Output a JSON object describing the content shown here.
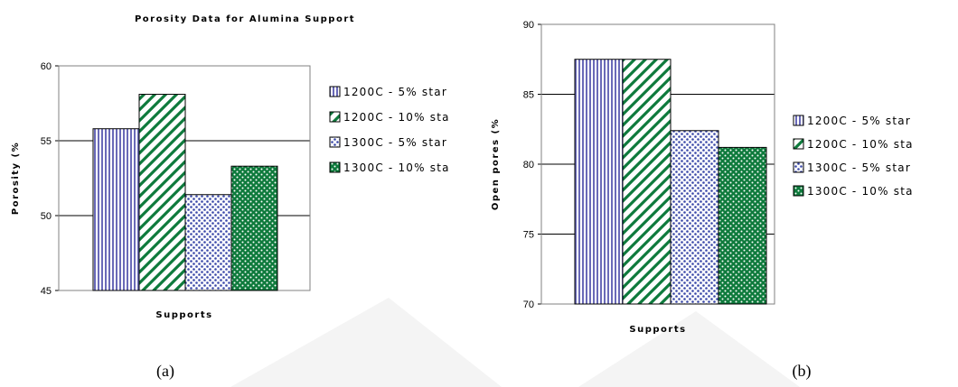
{
  "captions": {
    "a": "(a)",
    "b": "(b)"
  },
  "chart_data": [
    {
      "type": "bar",
      "title": "Porosity Data for Alumina Support",
      "xlabel": "Supports",
      "ylabel": "Porosity (%",
      "ylim": [
        45,
        60
      ],
      "yticks": [
        "45",
        "50",
        "55",
        "60"
      ],
      "grid": true,
      "legend_position": "right",
      "series": [
        {
          "name": "1200C - 5% star",
          "values": [
            55.8
          ],
          "color": "#6a6ab8",
          "pattern": "vertical-lines"
        },
        {
          "name": "1200C - 10% sta",
          "values": [
            58.1
          ],
          "color": "#0e7a3c",
          "pattern": "diagonal-stripes"
        },
        {
          "name": "1300C - 5% star",
          "values": [
            51.4
          ],
          "color": "#3a48a8",
          "pattern": "dots"
        },
        {
          "name": "1300C - 10% sta",
          "values": [
            53.3
          ],
          "color": "#0e7a3c",
          "pattern": "crosshatch"
        }
      ]
    },
    {
      "type": "bar",
      "title": "",
      "xlabel": "Supports",
      "ylabel": "Open pores (%",
      "ylim": [
        70,
        90
      ],
      "yticks": [
        "70",
        "75",
        "80",
        "85",
        "90"
      ],
      "grid": true,
      "legend_position": "right",
      "series": [
        {
          "name": "1200C - 5% star",
          "values": [
            87.5
          ],
          "color": "#6a6ab8",
          "pattern": "vertical-lines"
        },
        {
          "name": "1200C - 10% sta",
          "values": [
            87.5
          ],
          "color": "#0e7a3c",
          "pattern": "diagonal-stripes"
        },
        {
          "name": "1300C - 5% star",
          "values": [
            82.4
          ],
          "color": "#3a48a8",
          "pattern": "dots"
        },
        {
          "name": "1300C - 10% sta",
          "values": [
            81.2
          ],
          "color": "#0e7a3c",
          "pattern": "crosshatch"
        }
      ]
    }
  ]
}
